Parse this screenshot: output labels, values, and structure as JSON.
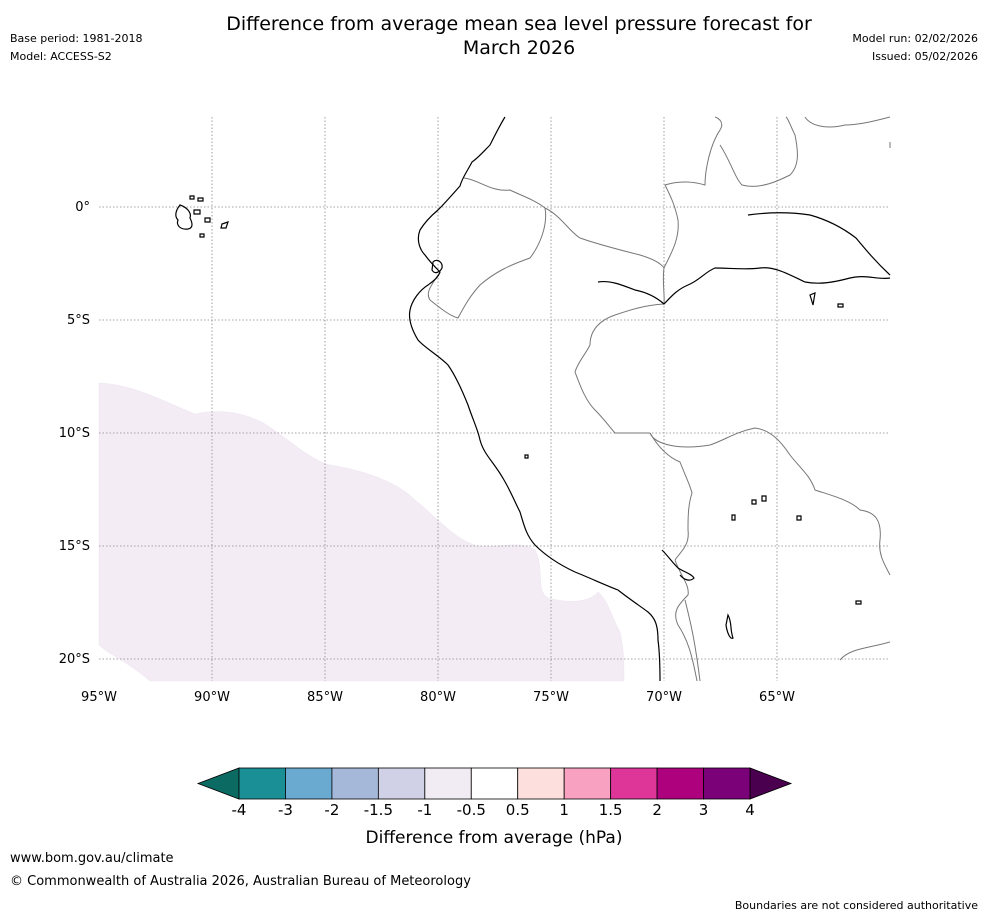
{
  "meta": {
    "base_period": "Base period: 1981-2018",
    "model": "Model: ACCESS-S2",
    "model_run": "Model run: 02/02/2026",
    "issued": "Issued: 05/02/2026"
  },
  "title": {
    "line1": "Difference from average mean sea level pressure forecast for",
    "line2": "March 2026"
  },
  "map": {
    "lat_labels": [
      "0°",
      "5°S",
      "10°S",
      "15°S",
      "20°S"
    ],
    "lon_labels": [
      "95°W",
      "90°W",
      "85°W",
      "80°W",
      "75°W",
      "70°W",
      "65°W"
    ],
    "shaded_anomaly_range": "-1 to -0.5"
  },
  "colorbar": {
    "title": "Difference from average (hPa)",
    "tick_labels": [
      "-4",
      "-3",
      "-2",
      "-1.5",
      "-1",
      "-0.5",
      "0.5",
      "1",
      "1.5",
      "2",
      "3",
      "4"
    ],
    "colors": [
      "#1a9096",
      "#6aaad1",
      "#a6b8d9",
      "#d0d0e6",
      "#f1ebf4",
      "#ffffff",
      "#fde0dd",
      "#f9a1c0",
      "#dd3598",
      "#ae017e",
      "#7a0177"
    ],
    "under_color": "#0b6b63",
    "over_color": "#4a004f"
  },
  "footer": {
    "url": "www.bom.gov.au/climate",
    "copyright": "© Commonwealth of Australia 2026, Australian Bureau of Meteorology",
    "note": "Boundaries are not considered authoritative"
  }
}
